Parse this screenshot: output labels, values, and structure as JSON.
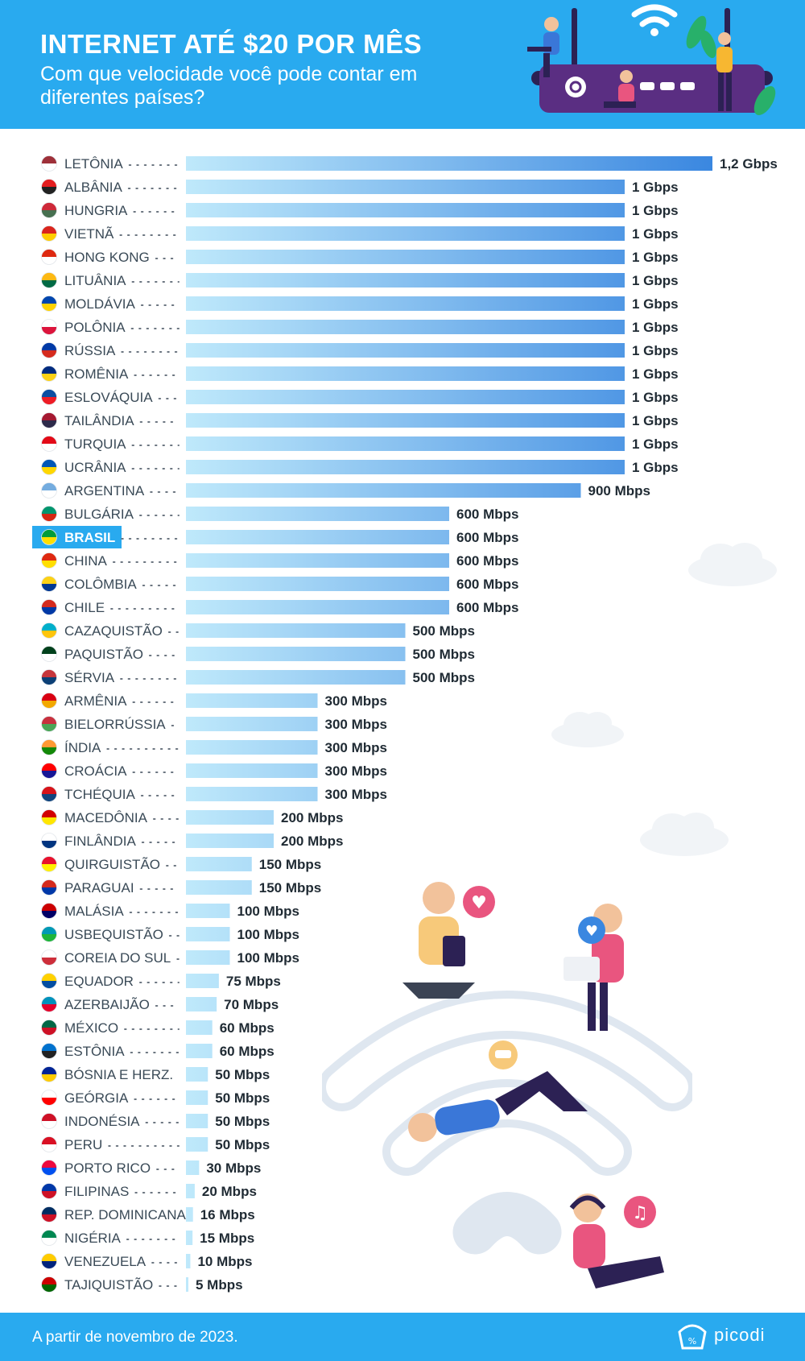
{
  "header": {
    "title": "INTERNET ATÉ $20 POR MÊS",
    "subtitle": "Com que velocidade você pode contar em diferentes países?"
  },
  "footer": {
    "note": "A partir de novembro de 2023.",
    "brand": "picodi"
  },
  "colors": {
    "header_bg": "#29aaef",
    "bar_start": "#bfe9fb",
    "bar_end": "#3a87e0",
    "highlight_bg": "#29aaef",
    "label_text": "#3a4a57",
    "value_text": "#1f2a33"
  },
  "chart_data": {
    "type": "bar",
    "orientation": "horizontal",
    "unit": "Mbps",
    "xlim": [
      0,
      1200
    ],
    "highlight": "BRASIL",
    "categories": [
      "LETÔNIA",
      "ALBÂNIA",
      "HUNGRIA",
      "VIETNÃ",
      "HONG KONG",
      "LITUÂNIA",
      "MOLDÁVIA",
      "POLÔNIA",
      "RÚSSIA",
      "ROMÊNIA",
      "ESLOVÁQUIA",
      "TAILÂNDIA",
      "TURQUIA",
      "UCRÂNIA",
      "ARGENTINA",
      "BULGÁRIA",
      "BRASIL",
      "CHINA",
      "COLÔMBIA",
      "CHILE",
      "CAZAQUISTÃO",
      "PAQUISTÃO",
      "SÉRVIA",
      "ARMÊNIA",
      "BIELORRÚSSIA",
      "ÍNDIA",
      "CROÁCIA",
      "TCHÉQUIA",
      "MACEDÔNIA",
      "FINLÂNDIA",
      "QUIRGUISTÃO",
      "PARAGUAI",
      "MALÁSIA",
      "USBEQUISTÃO",
      "COREIA DO SUL",
      "EQUADOR",
      "AZERBAIJÃO",
      "MÉXICO",
      "ESTÔNIA",
      "BÓSNIA E HERZ.",
      "GEÓRGIA",
      "INDONÉSIA",
      "PERU",
      "PORTO RICO",
      "FILIPINAS",
      "REP. DOMINICANA",
      "NIGÉRIA",
      "VENEZUELA",
      "TAJIQUISTÃO"
    ],
    "values": [
      1200,
      1000,
      1000,
      1000,
      1000,
      1000,
      1000,
      1000,
      1000,
      1000,
      1000,
      1000,
      1000,
      1000,
      900,
      600,
      600,
      600,
      600,
      600,
      500,
      500,
      500,
      300,
      300,
      300,
      300,
      300,
      200,
      200,
      150,
      150,
      100,
      100,
      100,
      75,
      70,
      60,
      60,
      50,
      50,
      50,
      50,
      30,
      20,
      16,
      15,
      10,
      5
    ],
    "value_labels": [
      "1,2 Gbps",
      "1 Gbps",
      "1 Gbps",
      "1 Gbps",
      "1 Gbps",
      "1 Gbps",
      "1 Gbps",
      "1 Gbps",
      "1 Gbps",
      "1 Gbps",
      "1 Gbps",
      "1 Gbps",
      "1 Gbps",
      "1 Gbps",
      "900 Mbps",
      "600 Mbps",
      "600 Mbps",
      "600 Mbps",
      "600 Mbps",
      "600 Mbps",
      "500 Mbps",
      "500 Mbps",
      "500 Mbps",
      "300 Mbps",
      "300 Mbps",
      "300 Mbps",
      "300 Mbps",
      "300 Mbps",
      "200 Mbps",
      "200 Mbps",
      "150 Mbps",
      "150 Mbps",
      "100 Mbps",
      "100 Mbps",
      "100 Mbps",
      "75 Mbps",
      "70 Mbps",
      "60 Mbps",
      "60 Mbps",
      "50 Mbps",
      "50 Mbps",
      "50 Mbps",
      "50 Mbps",
      "30 Mbps",
      "20 Mbps",
      "16 Mbps",
      "15 Mbps",
      "10 Mbps",
      "5 Mbps"
    ],
    "flag_colors": [
      [
        "#9e3039",
        "#ffffff"
      ],
      [
        "#e41e20",
        "#222222"
      ],
      [
        "#ce2939",
        "#477050"
      ],
      [
        "#da251d",
        "#ffcd00"
      ],
      [
        "#de2910",
        "#ffffff"
      ],
      [
        "#fdb913",
        "#006a44"
      ],
      [
        "#0046ae",
        "#ffd200"
      ],
      [
        "#ffffff",
        "#dc143c"
      ],
      [
        "#0039a6",
        "#d52b1e"
      ],
      [
        "#002b7f",
        "#fcd116"
      ],
      [
        "#0b4ea2",
        "#ee1c25"
      ],
      [
        "#a51931",
        "#2d2a4a"
      ],
      [
        "#e30a17",
        "#ffffff"
      ],
      [
        "#0057b7",
        "#ffd700"
      ],
      [
        "#74acdf",
        "#ffffff"
      ],
      [
        "#00966e",
        "#d62612"
      ],
      [
        "#009c3b",
        "#ffdf00"
      ],
      [
        "#de2910",
        "#ffde00"
      ],
      [
        "#fcd116",
        "#003893"
      ],
      [
        "#d52b1e",
        "#0039a6"
      ],
      [
        "#00afca",
        "#fec50c"
      ],
      [
        "#01411c",
        "#ffffff"
      ],
      [
        "#c6363c",
        "#0c4076"
      ],
      [
        "#d90012",
        "#f2a800"
      ],
      [
        "#c8313e",
        "#4aa657"
      ],
      [
        "#ff9933",
        "#138808"
      ],
      [
        "#ff0000",
        "#171796"
      ],
      [
        "#d7141a",
        "#11457e"
      ],
      [
        "#d20000",
        "#ffe600"
      ],
      [
        "#ffffff",
        "#003580"
      ],
      [
        "#e8112d",
        "#ffef00"
      ],
      [
        "#d52b1e",
        "#0038a8"
      ],
      [
        "#cc0001",
        "#010066"
      ],
      [
        "#0099b5",
        "#1eb53a"
      ],
      [
        "#ffffff",
        "#cd2e3a"
      ],
      [
        "#ffd100",
        "#034ea2"
      ],
      [
        "#0092bc",
        "#e4002b"
      ],
      [
        "#006847",
        "#ce1126"
      ],
      [
        "#0072ce",
        "#222222"
      ],
      [
        "#002395",
        "#fecb00"
      ],
      [
        "#ffffff",
        "#ff0000"
      ],
      [
        "#ce1126",
        "#ffffff"
      ],
      [
        "#d91023",
        "#ffffff"
      ],
      [
        "#ed0a3f",
        "#0050f0"
      ],
      [
        "#0038a8",
        "#ce1126"
      ],
      [
        "#002d62",
        "#ce1126"
      ],
      [
        "#008751",
        "#ffffff"
      ],
      [
        "#ffcc00",
        "#00247d"
      ],
      [
        "#cc0000",
        "#006600"
      ]
    ]
  }
}
